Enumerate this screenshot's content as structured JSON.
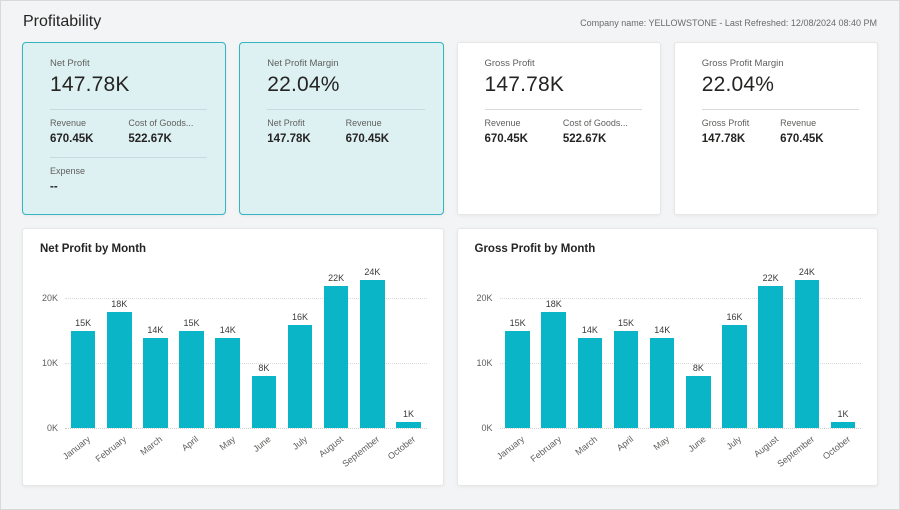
{
  "header": {
    "title": "Profitability",
    "meta": "Company name: YELLOWSTONE - Last Refreshed: 12/08/2024 08:40 PM"
  },
  "colors": {
    "accent_teal": "#0ab5c7",
    "highlight_card_bg": "#ddf1f3",
    "highlight_card_border": "#35b4c2",
    "card_bg": "#ffffff",
    "page_bg": "#f3f4f5",
    "text_dark": "#252423",
    "text_gray": "#605e5c"
  },
  "kpi_cards": [
    {
      "label": "Net Profit",
      "value": "147.78K",
      "highlighted": true,
      "details": [
        {
          "label": "Revenue",
          "value": "670.45K"
        },
        {
          "label": "Cost of Goods...",
          "value": "522.67K"
        }
      ],
      "extra": [
        {
          "label": "Expense",
          "value": "--"
        }
      ]
    },
    {
      "label": "Net Profit Margin",
      "value": "22.04%",
      "highlighted": true,
      "details": [
        {
          "label": "Net Profit",
          "value": "147.78K"
        },
        {
          "label": "Revenue",
          "value": "670.45K"
        }
      ]
    },
    {
      "label": "Gross Profit",
      "value": "147.78K",
      "highlighted": false,
      "details": [
        {
          "label": "Revenue",
          "value": "670.45K"
        },
        {
          "label": "Cost of Goods...",
          "value": "522.67K"
        }
      ]
    },
    {
      "label": "Gross Profit Margin",
      "value": "22.04%",
      "highlighted": false,
      "details": [
        {
          "label": "Gross Profit",
          "value": "147.78K"
        },
        {
          "label": "Revenue",
          "value": "670.45K"
        }
      ]
    }
  ],
  "chart_data": [
    {
      "type": "bar",
      "title": "Net Profit by Month",
      "categories": [
        "January",
        "February",
        "March",
        "April",
        "May",
        "June",
        "July",
        "August",
        "September",
        "October"
      ],
      "values": [
        15000,
        18000,
        14000,
        15000,
        14000,
        8000,
        16000,
        22000,
        24000,
        1000
      ],
      "labels": [
        "15K",
        "18K",
        "14K",
        "15K",
        "14K",
        "8K",
        "16K",
        "22K",
        "24K",
        "1K"
      ],
      "y_ticks": [
        {
          "label": "0K",
          "value": 0
        },
        {
          "label": "10K",
          "value": 10000
        },
        {
          "label": "20K",
          "value": 20000
        }
      ],
      "xlabel": "",
      "ylabel": "",
      "ylim": [
        0,
        25000
      ],
      "grid": "dotted horizontal",
      "legend": "none",
      "bar_color": "#0ab5c7"
    },
    {
      "type": "bar",
      "title": "Gross Profit by Month",
      "categories": [
        "January",
        "February",
        "March",
        "April",
        "May",
        "June",
        "July",
        "August",
        "September",
        "October"
      ],
      "values": [
        15000,
        18000,
        14000,
        15000,
        14000,
        8000,
        16000,
        22000,
        24000,
        1000
      ],
      "labels": [
        "15K",
        "18K",
        "14K",
        "15K",
        "14K",
        "8K",
        "16K",
        "22K",
        "24K",
        "1K"
      ],
      "y_ticks": [
        {
          "label": "0K",
          "value": 0
        },
        {
          "label": "10K",
          "value": 10000
        },
        {
          "label": "20K",
          "value": 20000
        }
      ],
      "xlabel": "",
      "ylabel": "",
      "ylim": [
        0,
        25000
      ],
      "grid": "dotted horizontal",
      "legend": "none",
      "bar_color": "#0ab5c7"
    }
  ]
}
